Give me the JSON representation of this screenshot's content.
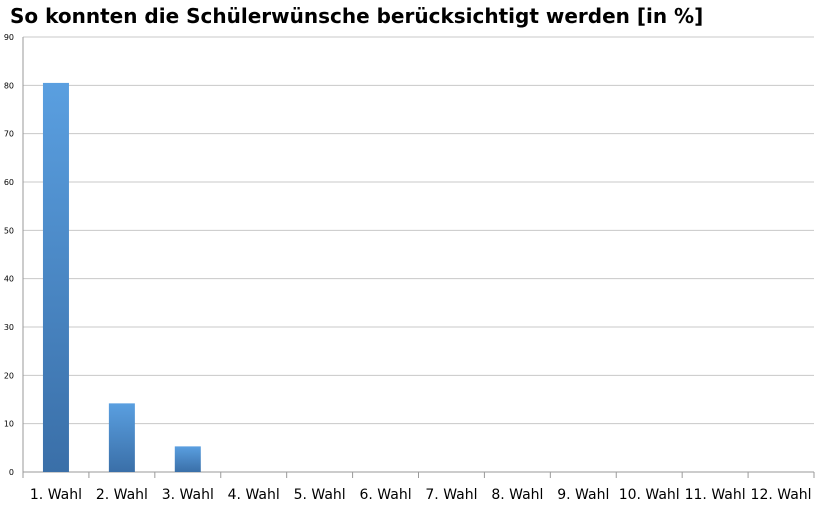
{
  "chart_data": {
    "type": "bar",
    "title": "So konnten die Schülerwünsche berücksichtigt werden [in %]",
    "categories": [
      "1. Wahl",
      "2. Wahl",
      "3. Wahl",
      "4. Wahl",
      "5. Wahl",
      "6. Wahl",
      "7. Wahl",
      "8. Wahl",
      "9. Wahl",
      "10. Wahl",
      "11. Wahl",
      "12. Wahl"
    ],
    "values": [
      80.5,
      14.2,
      5.3,
      0,
      0,
      0,
      0,
      0,
      0,
      0,
      0,
      0
    ],
    "yticks": [
      "0",
      "10",
      "20",
      "30",
      "40",
      "50",
      "60",
      "70",
      "80",
      "90"
    ],
    "ylim": [
      0,
      90
    ],
    "grid": true,
    "legend": "none",
    "colors": {
      "bar_top": "#5a9fe0",
      "bar_bottom": "#3a6fa8",
      "grid": "#c8c8c8",
      "axis": "#9a9a9a"
    }
  }
}
